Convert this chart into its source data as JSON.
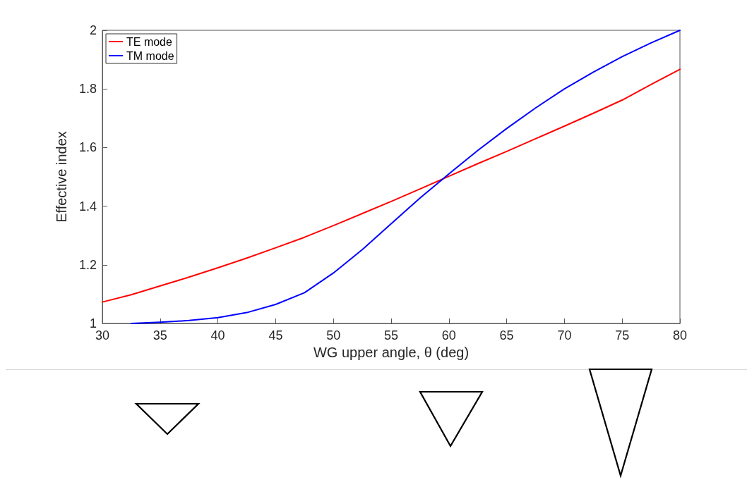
{
  "chart_data": {
    "type": "line",
    "xlabel": "WG upper angle, θ (deg)",
    "ylabel": "Effective index",
    "xlim": [
      30,
      80
    ],
    "xticks": [
      30,
      35,
      40,
      45,
      50,
      55,
      60,
      65,
      70,
      75,
      80
    ],
    "ylim": [
      1,
      2
    ],
    "yticks": [
      1,
      1.2,
      1.4,
      1.6,
      1.8,
      2
    ],
    "grid": false,
    "legend": "top left",
    "marker": "none",
    "line_style": "solid",
    "series": [
      {
        "name": "TE mode",
        "color": "#ff0000",
        "x": [
          30,
          32.5,
          35,
          37.5,
          40,
          42.5,
          45,
          47.5,
          50,
          52.5,
          55,
          57.5,
          60,
          62.5,
          65,
          67.5,
          70,
          72.5,
          75,
          77.5,
          80
        ],
        "values": [
          1.073,
          1.098,
          1.128,
          1.158,
          1.19,
          1.223,
          1.258,
          1.294,
          1.334,
          1.375,
          1.416,
          1.459,
          1.502,
          1.545,
          1.587,
          1.63,
          1.673,
          1.717,
          1.762,
          1.815,
          1.867
        ]
      },
      {
        "name": "TM mode",
        "color": "#0000ff",
        "x": [
          32.5,
          35,
          37.5,
          40,
          42.5,
          45,
          47.5,
          50,
          52.5,
          55,
          57.5,
          60,
          62.5,
          65,
          67.5,
          70,
          72.5,
          75,
          77.5,
          80
        ],
        "values": [
          1.0,
          1.004,
          1.01,
          1.02,
          1.037,
          1.065,
          1.105,
          1.172,
          1.252,
          1.34,
          1.428,
          1.51,
          1.59,
          1.665,
          1.735,
          1.8,
          1.857,
          1.91,
          1.957,
          2.0
        ]
      }
    ]
  }
}
